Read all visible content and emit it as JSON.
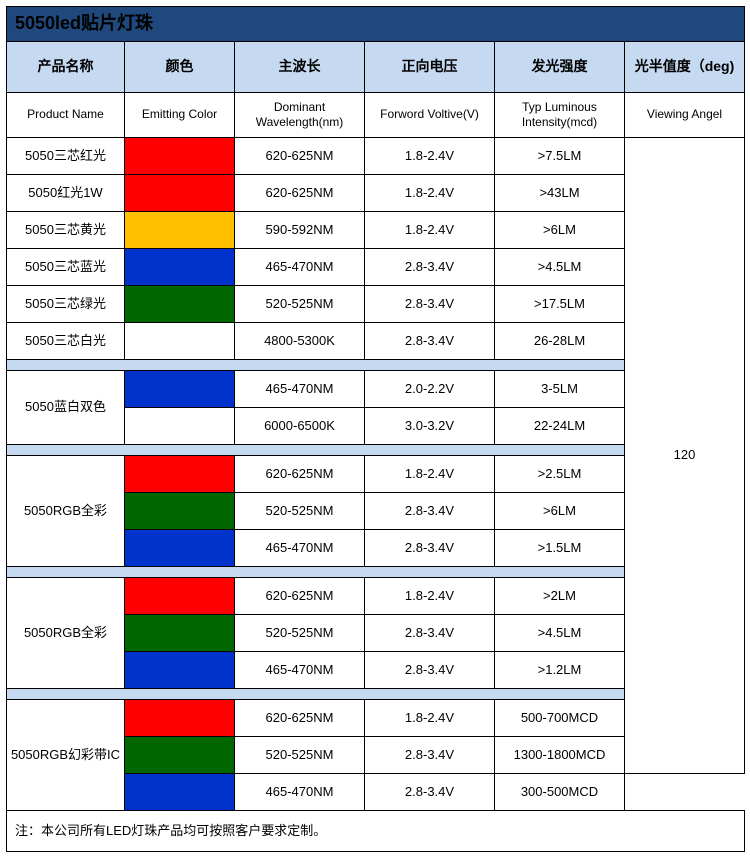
{
  "title": "5050led贴片灯珠",
  "headers_cn": [
    "产品名称",
    "颜色",
    "主波长",
    "正向电压",
    "发光强度",
    "光半值度（deg)"
  ],
  "headers_en": [
    "Product Name",
    "Emitting Color",
    "Dominant Wavelength(nm)",
    "Forword Voltive(V)",
    "Typ Luminous Intensity(mcd)",
    "Viewing Angel"
  ],
  "viewing_angle": "120",
  "footer": "注：本公司所有LED灯珠产品均可按照客户要求定制。",
  "colors": {
    "red": "#ff0000",
    "yellow": "#ffc000",
    "blue": "#0033cc",
    "green": "#006600",
    "white": "#ffffff",
    "header_bg": "#c5d9f1",
    "title_bg": "#1f497d"
  },
  "group1": [
    {
      "name": "5050三芯红光",
      "color": "#ff0000",
      "wl": "620-625NM",
      "fv": "1.8-2.4V",
      "li": ">7.5LM"
    },
    {
      "name": "5050红光1W",
      "color": "#ff0000",
      "wl": "620-625NM",
      "fv": "1.8-2.4V",
      "li": ">43LM"
    },
    {
      "name": "5050三芯黄光",
      "color": "#ffc000",
      "wl": "590-592NM",
      "fv": "1.8-2.4V",
      "li": ">6LM"
    },
    {
      "name": "5050三芯蓝光",
      "color": "#0033cc",
      "wl": "465-470NM",
      "fv": "2.8-3.4V",
      "li": ">4.5LM"
    },
    {
      "name": "5050三芯绿光",
      "color": "#006600",
      "wl": "520-525NM",
      "fv": "2.8-3.4V",
      "li": ">17.5LM"
    },
    {
      "name": "5050三芯白光",
      "color": "#ffffff",
      "wl": "4800-5300K",
      "fv": "2.8-3.4V",
      "li": "26-28LM"
    }
  ],
  "group2": {
    "name": "5050蓝白双色",
    "rows": [
      {
        "color": "#0033cc",
        "wl": "465-470NM",
        "fv": "2.0-2.2V",
        "li": "3-5LM"
      },
      {
        "color": "#ffffff",
        "wl": "6000-6500K",
        "fv": "3.0-3.2V",
        "li": "22-24LM"
      }
    ]
  },
  "group3": {
    "name": "5050RGB全彩",
    "rows": [
      {
        "color": "#ff0000",
        "wl": "620-625NM",
        "fv": "1.8-2.4V",
        "li": ">2.5LM"
      },
      {
        "color": "#006600",
        "wl": "520-525NM",
        "fv": "2.8-3.4V",
        "li": ">6LM"
      },
      {
        "color": "#0033cc",
        "wl": "465-470NM",
        "fv": "2.8-3.4V",
        "li": ">1.5LM"
      }
    ]
  },
  "group4": {
    "name": "5050RGB全彩",
    "rows": [
      {
        "color": "#ff0000",
        "wl": "620-625NM",
        "fv": "1.8-2.4V",
        "li": ">2LM"
      },
      {
        "color": "#006600",
        "wl": "520-525NM",
        "fv": "2.8-3.4V",
        "li": ">4.5LM"
      },
      {
        "color": "#0033cc",
        "wl": "465-470NM",
        "fv": "2.8-3.4V",
        "li": ">1.2LM"
      }
    ]
  },
  "group5": {
    "name": "5050RGB幻彩带IC",
    "rows": [
      {
        "color": "#ff0000",
        "wl": "620-625NM",
        "fv": "1.8-2.4V",
        "li": "500-700MCD"
      },
      {
        "color": "#006600",
        "wl": "520-525NM",
        "fv": "2.8-3.4V",
        "li": "1300-1800MCD"
      },
      {
        "color": "#0033cc",
        "wl": "465-470NM",
        "fv": "2.8-3.4V",
        "li": "300-500MCD"
      }
    ]
  }
}
